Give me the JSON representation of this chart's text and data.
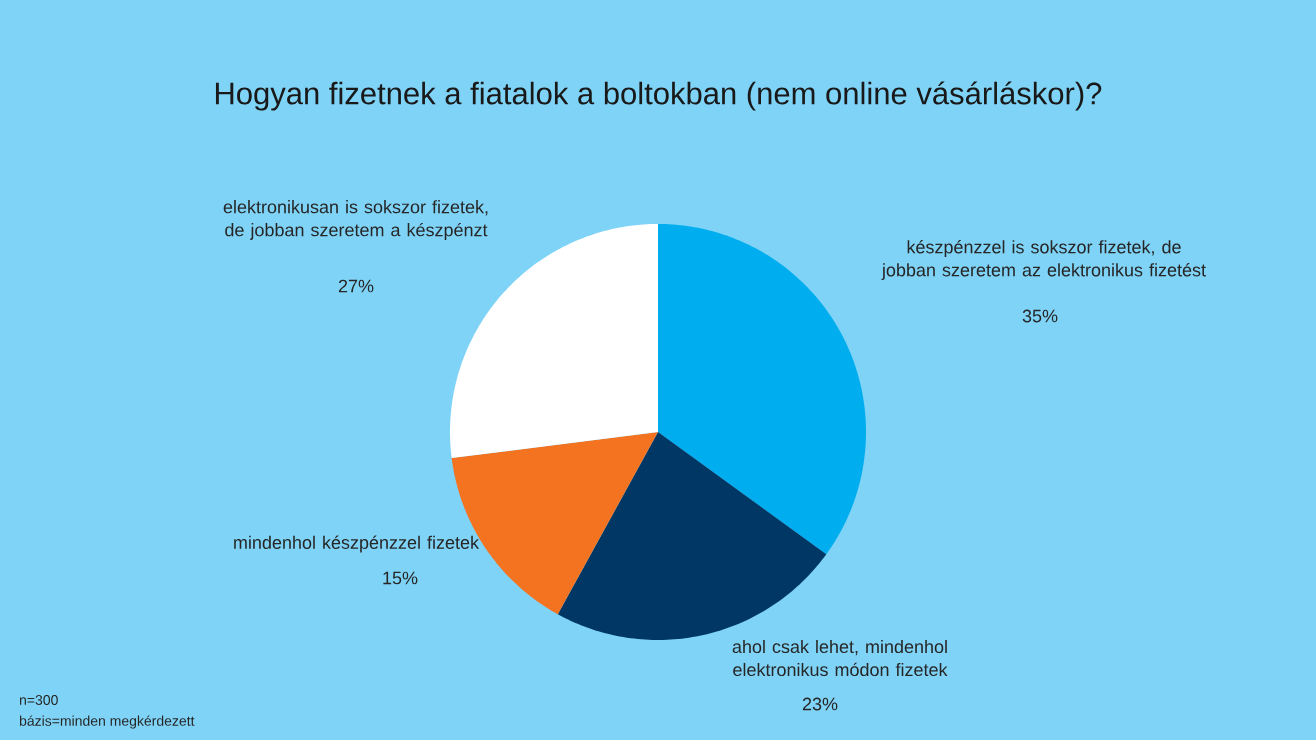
{
  "chart_data": {
    "type": "pie",
    "title": "Hogyan fizetnek a fiatalok a boltokban (nem online vásárláskor)?",
    "categories": [
      "készpénzzel is sokszor fizetek, de jobban szeretem az elektronikus fizetést",
      "ahol csak lehet, mindenhol elektronikus módon fizetek",
      "mindenhol készpénzzel fizetek",
      "elektronikusan is sokszor fizetek, de jobban szeretem a készpénzt"
    ],
    "values": [
      35,
      23,
      15,
      27
    ],
    "value_labels": [
      "35%",
      "23%",
      "15%",
      "27%"
    ],
    "colors": [
      "#00aeef",
      "#003764",
      "#f47321",
      "#ffffff"
    ],
    "annotations": [
      "n=300",
      "bázis=minden megkérdezett"
    ]
  }
}
